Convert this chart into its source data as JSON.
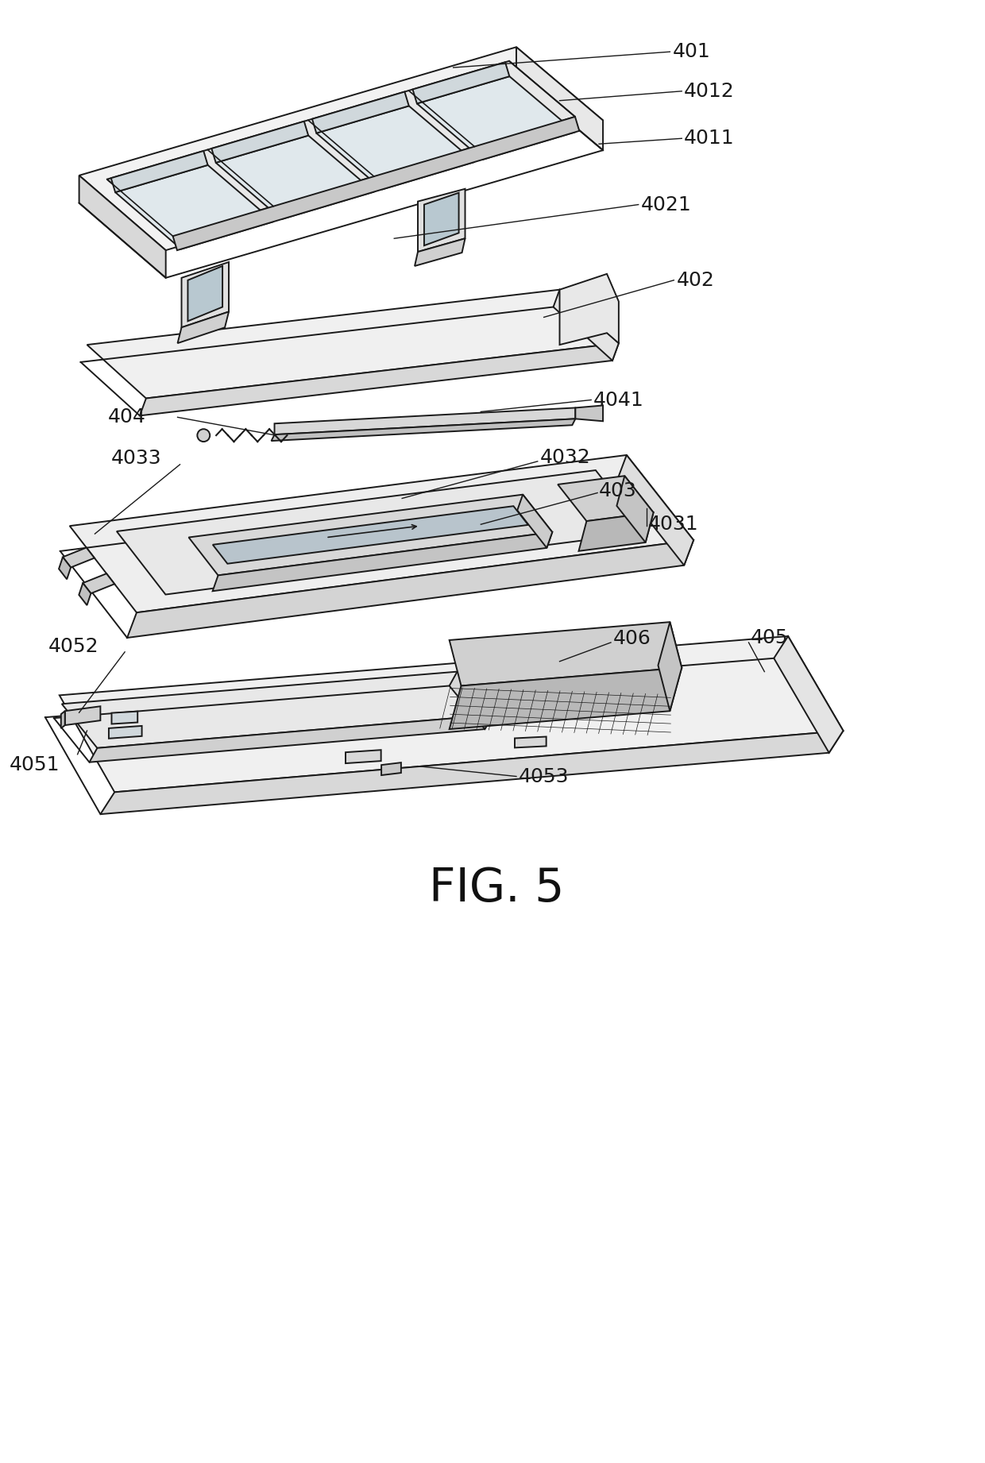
{
  "title": "FIG. 5",
  "bg": "#ffffff",
  "lc": "#1a1a1a",
  "lw": 1.4,
  "fill_top": "#f5f5f5",
  "fill_side": "#e0e0e0",
  "fill_front": "#ebebeb",
  "label_fs": 18
}
